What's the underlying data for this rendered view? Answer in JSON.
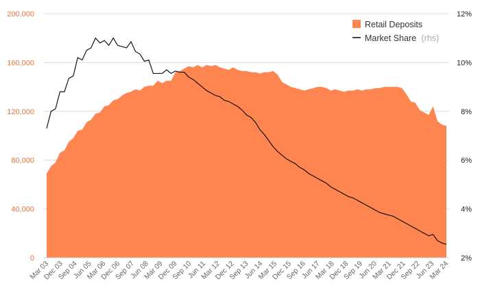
{
  "chart_data": {
    "type": "area+line",
    "colors": {
      "deposits": "#FF8550",
      "share": "#111111",
      "grid": "#dddddd",
      "left_axis": "#E8743B"
    },
    "left_axis": {
      "min": 0,
      "max": 200000,
      "ticks": [
        "0",
        "40,000",
        "80,000",
        "120,000",
        "160,000",
        "200,000"
      ]
    },
    "right_axis": {
      "min": 2,
      "max": 12,
      "ticks": [
        "2%",
        "4%",
        "6%",
        "8%",
        "10%",
        "12%"
      ]
    },
    "x_labels": [
      "Mar 03",
      "Dec 03",
      "Sep 04",
      "Jun 05",
      "Mar 06",
      "Dec 06",
      "Sep 07",
      "Jun 08",
      "Mar 09",
      "Dec 09",
      "Sep 10",
      "Jun 11",
      "Mar 12",
      "Dec 12",
      "Sep 13",
      "Jun 14",
      "Mar 15",
      "Dec 15",
      "Sep 16",
      "Jun 17",
      "Mar 18",
      "Dec 18",
      "Sep 19",
      "Jun 20",
      "Mar 21",
      "Dec 21",
      "Sep 22",
      "Jun 23",
      "Mar 24"
    ],
    "legend": {
      "deposits_label": "Retail Deposits",
      "share_label": "Market Share",
      "share_suffix": "(rhs)"
    },
    "series": [
      {
        "name": "Retail Deposits",
        "axis": "left",
        "style": "area",
        "values": [
          69000,
          75000,
          78000,
          86000,
          88000,
          95000,
          98000,
          104000,
          105000,
          111000,
          113000,
          118000,
          119000,
          124000,
          125000,
          129000,
          130000,
          133000,
          135000,
          136000,
          138000,
          137000,
          140000,
          141000,
          141000,
          145000,
          143000,
          145000,
          145000,
          152000,
          153000,
          155000,
          157000,
          156000,
          158000,
          156000,
          158000,
          157000,
          158000,
          156000,
          155000,
          154000,
          156000,
          154000,
          153000,
          153000,
          152000,
          152000,
          151000,
          152000,
          152000,
          153000,
          150000,
          144000,
          142000,
          140000,
          139000,
          138000,
          137000,
          138000,
          139000,
          140000,
          140000,
          139000,
          137000,
          138000,
          137000,
          136000,
          137000,
          137000,
          138000,
          137000,
          138000,
          138000,
          139000,
          139000,
          140000,
          140000,
          140000,
          140000,
          139000,
          134000,
          128000,
          127000,
          121000,
          119000,
          117000,
          124000,
          112000,
          109000,
          108000
        ]
      },
      {
        "name": "Market Share",
        "axis": "right",
        "style": "line",
        "values": [
          7.3,
          8.0,
          8.1,
          8.8,
          8.8,
          9.35,
          9.45,
          10.2,
          10.1,
          10.5,
          10.6,
          11.0,
          10.8,
          10.9,
          10.7,
          11.0,
          10.7,
          10.65,
          10.6,
          10.85,
          10.45,
          10.35,
          10.05,
          10.1,
          9.55,
          9.55,
          9.55,
          9.7,
          9.55,
          9.65,
          9.6,
          9.6,
          9.4,
          9.3,
          9.15,
          9.0,
          8.85,
          8.75,
          8.65,
          8.6,
          8.45,
          8.4,
          8.3,
          8.2,
          8.05,
          7.85,
          7.75,
          7.55,
          7.25,
          7.05,
          6.8,
          6.55,
          6.35,
          6.2,
          6.05,
          5.95,
          5.85,
          5.7,
          5.6,
          5.45,
          5.35,
          5.25,
          5.15,
          5.05,
          4.9,
          4.8,
          4.7,
          4.6,
          4.5,
          4.45,
          4.35,
          4.25,
          4.15,
          4.05,
          3.95,
          3.85,
          3.8,
          3.75,
          3.7,
          3.6,
          3.5,
          3.4,
          3.3,
          3.2,
          3.1,
          3.0,
          2.9,
          2.95,
          2.7,
          2.6,
          2.55
        ]
      }
    ]
  }
}
